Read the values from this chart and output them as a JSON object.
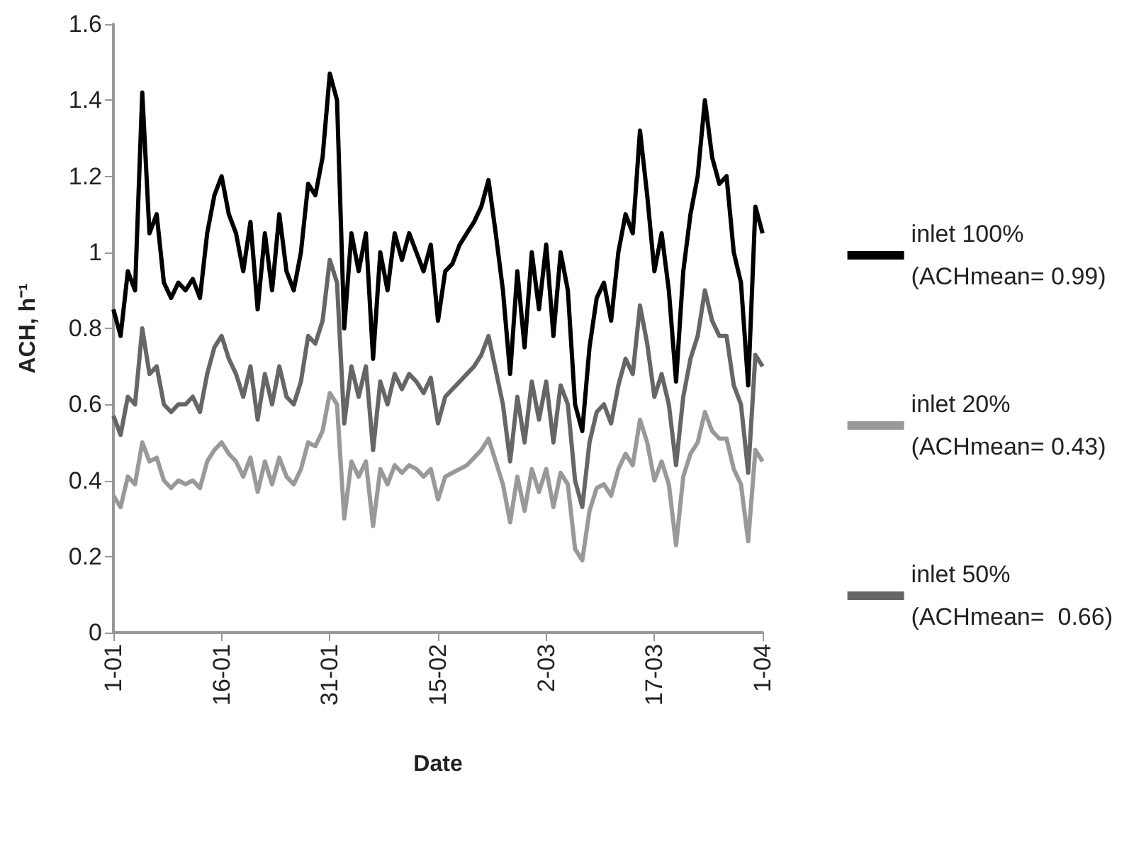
{
  "chart_data": {
    "type": "line",
    "xlabel": "Date",
    "ylabel": "ACH, h⁻¹",
    "x": [
      "--01-01",
      "--01-02",
      "--01-03",
      "--01-04",
      "--01-05",
      "--01-06",
      "--01-07",
      "--01-08",
      "--01-09",
      "--01-10",
      "--01-11",
      "--01-12",
      "--01-13",
      "--01-14",
      "--01-15",
      "--01-16",
      "--01-17",
      "--01-18",
      "--01-19",
      "--01-20",
      "--01-21",
      "--01-22",
      "--01-23",
      "--01-24",
      "--01-25",
      "--01-26",
      "--01-27",
      "--01-28",
      "--01-29",
      "--01-30",
      "--01-31",
      "--02-01",
      "--02-02",
      "--02-03",
      "--02-04",
      "--02-05",
      "--02-06",
      "--02-07",
      "--02-08",
      "--02-09",
      "--02-10",
      "--02-11",
      "--02-12",
      "--02-13",
      "--02-14",
      "--02-15",
      "--02-16",
      "--02-17",
      "--02-18",
      "--02-19",
      "--02-20",
      "--02-21",
      "--02-22",
      "--02-23",
      "--02-24",
      "--02-25",
      "--02-26",
      "--02-27",
      "--02-28",
      "--03-01",
      "--03-02",
      "--03-03",
      "--03-04",
      "--03-05",
      "--03-06",
      "--03-07",
      "--03-08",
      "--03-09",
      "--03-10",
      "--03-11",
      "--03-12",
      "--03-13",
      "--03-14",
      "--03-15",
      "--03-16",
      "--03-17",
      "--03-18",
      "--03-19",
      "--03-20",
      "--03-21",
      "--03-22",
      "--03-23",
      "--03-24",
      "--03-25",
      "--03-26",
      "--03-27",
      "--03-28",
      "--03-29",
      "--03-30",
      "--03-31",
      "--04-01"
    ],
    "series": [
      {
        "name": "inlet 100%\n(ACHmean= 0.99)",
        "color": "#000000",
        "values": [
          0.85,
          0.78,
          0.95,
          0.9,
          1.42,
          1.05,
          1.1,
          0.92,
          0.88,
          0.92,
          0.9,
          0.93,
          0.88,
          1.05,
          1.15,
          1.2,
          1.1,
          1.05,
          0.95,
          1.08,
          0.85,
          1.05,
          0.9,
          1.1,
          0.95,
          0.9,
          1.0,
          1.18,
          1.15,
          1.25,
          1.47,
          1.4,
          0.8,
          1.05,
          0.95,
          1.05,
          0.72,
          1.0,
          0.9,
          1.05,
          0.98,
          1.05,
          1.0,
          0.95,
          1.02,
          0.82,
          0.95,
          0.97,
          1.02,
          1.05,
          1.08,
          1.12,
          1.19,
          1.05,
          0.9,
          0.68,
          0.95,
          0.75,
          1.0,
          0.85,
          1.02,
          0.78,
          1.0,
          0.9,
          0.6,
          0.53,
          0.75,
          0.88,
          0.92,
          0.82,
          1.0,
          1.1,
          1.05,
          1.32,
          1.15,
          0.95,
          1.05,
          0.9,
          0.66,
          0.95,
          1.1,
          1.2,
          1.4,
          1.25,
          1.18,
          1.2,
          1.0,
          0.92,
          0.65,
          1.12,
          1.05
        ]
      },
      {
        "name": "inlet 20%\n(ACHmean= 0.43)",
        "color": "#999999",
        "values": [
          0.36,
          0.33,
          0.41,
          0.39,
          0.5,
          0.45,
          0.46,
          0.4,
          0.38,
          0.4,
          0.39,
          0.4,
          0.38,
          0.45,
          0.48,
          0.5,
          0.47,
          0.45,
          0.41,
          0.46,
          0.37,
          0.45,
          0.39,
          0.46,
          0.41,
          0.39,
          0.43,
          0.5,
          0.49,
          0.53,
          0.63,
          0.6,
          0.3,
          0.45,
          0.41,
          0.45,
          0.28,
          0.43,
          0.39,
          0.44,
          0.42,
          0.44,
          0.43,
          0.41,
          0.43,
          0.35,
          0.41,
          0.42,
          0.43,
          0.44,
          0.46,
          0.48,
          0.51,
          0.45,
          0.39,
          0.29,
          0.41,
          0.32,
          0.43,
          0.37,
          0.43,
          0.33,
          0.42,
          0.39,
          0.22,
          0.19,
          0.32,
          0.38,
          0.39,
          0.36,
          0.43,
          0.47,
          0.44,
          0.56,
          0.5,
          0.4,
          0.45,
          0.39,
          0.23,
          0.41,
          0.47,
          0.5,
          0.58,
          0.53,
          0.51,
          0.51,
          0.43,
          0.39,
          0.24,
          0.48,
          0.45
        ]
      },
      {
        "name": "inlet 50%\n(ACHmean=  0.66)",
        "color": "#666666",
        "values": [
          0.57,
          0.52,
          0.62,
          0.6,
          0.8,
          0.68,
          0.7,
          0.6,
          0.58,
          0.6,
          0.6,
          0.62,
          0.58,
          0.68,
          0.75,
          0.78,
          0.72,
          0.68,
          0.62,
          0.7,
          0.56,
          0.68,
          0.6,
          0.7,
          0.62,
          0.6,
          0.66,
          0.78,
          0.76,
          0.82,
          0.98,
          0.92,
          0.55,
          0.7,
          0.62,
          0.7,
          0.48,
          0.66,
          0.6,
          0.68,
          0.64,
          0.68,
          0.66,
          0.63,
          0.67,
          0.55,
          0.62,
          0.64,
          0.66,
          0.68,
          0.7,
          0.73,
          0.78,
          0.69,
          0.6,
          0.45,
          0.62,
          0.5,
          0.66,
          0.56,
          0.66,
          0.5,
          0.65,
          0.6,
          0.4,
          0.33,
          0.5,
          0.58,
          0.6,
          0.55,
          0.65,
          0.72,
          0.68,
          0.86,
          0.76,
          0.62,
          0.68,
          0.6,
          0.44,
          0.62,
          0.72,
          0.78,
          0.9,
          0.82,
          0.78,
          0.78,
          0.65,
          0.6,
          0.42,
          0.73,
          0.7
        ]
      }
    ],
    "xlim": [
      "--01-01",
      "--04-01"
    ],
    "xticks": [
      {
        "value": "--01-01",
        "label": "1-01"
      },
      {
        "value": "--01-16",
        "label": "16-01"
      },
      {
        "value": "--01-31",
        "label": "31-01"
      },
      {
        "value": "--02-15",
        "label": "15-02"
      },
      {
        "value": "--03-02",
        "label": "2-03"
      },
      {
        "value": "--03-17",
        "label": "17-03"
      },
      {
        "value": "--04-01",
        "label": "1-04"
      }
    ],
    "ylim": [
      0,
      1.6
    ],
    "yticks": [
      0,
      0.2,
      0.4,
      0.6,
      0.8,
      1,
      1.2,
      1.4,
      1.6
    ],
    "grid": false,
    "legend": "right",
    "marker": "none",
    "line_style": "solid"
  }
}
